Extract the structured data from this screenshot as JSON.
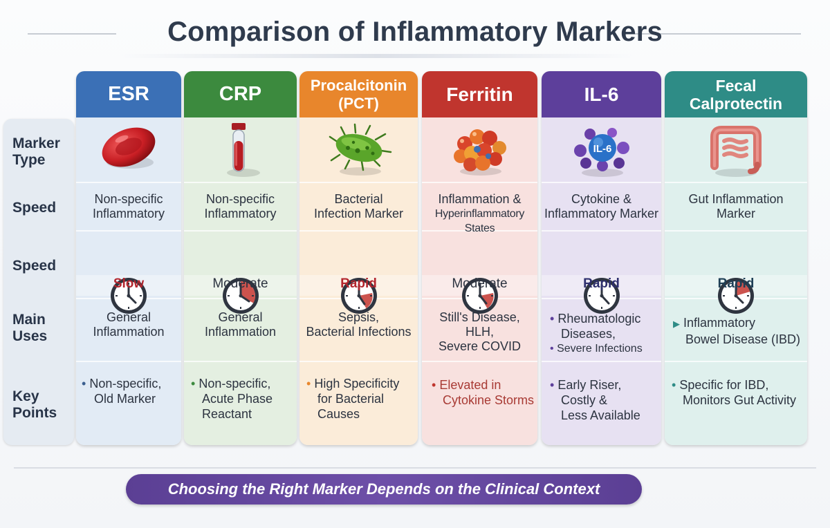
{
  "title": "Comparison of Inflammatory Markers",
  "row_labels": {
    "marker_type": "Marker\nType",
    "speed1": "Speed",
    "speed2": "Speed",
    "main_uses": "Main\nUses",
    "key_points": "Key\nPoints"
  },
  "columns": [
    {
      "header": "ESR",
      "icon": "red-blood-cell-icon",
      "category": [
        "Non-specific",
        "Inflammatory"
      ],
      "speed": "Slow",
      "uses": [
        "General",
        "Inflammation"
      ],
      "key_points": [
        [
          "Non-specific,",
          "Old Marker"
        ]
      ],
      "colors": {
        "header": "#3b70b6",
        "body": "#e2ebf5",
        "speed_text": "#b3262e",
        "bullet": "#3b5f8f"
      }
    },
    {
      "header": "CRP",
      "icon": "blood-test-tube-icon",
      "category": [
        "Non-specific",
        "Inflammatory"
      ],
      "speed": "Moderate",
      "uses": [
        "General",
        "Inflammation"
      ],
      "key_points": [
        [
          "Non-specific,",
          "Acute Phase",
          "Reactant"
        ]
      ],
      "colors": {
        "header": "#3c8a3e",
        "body": "#e4efe1",
        "speed_text": "#2c3340",
        "bullet": "#3c8a3e"
      }
    },
    {
      "header": "Procalcitonin\n(PCT)",
      "icon": "bacterium-icon",
      "category": [
        "Bacterial",
        "Infection Marker"
      ],
      "speed": "Rapid",
      "uses": [
        "Sepsis,",
        "Bacterial Infections"
      ],
      "key_points": [
        [
          "High Specificity",
          "for Bacterial",
          "Causes"
        ]
      ],
      "colors": {
        "header": "#e8862c",
        "body": "#fbecd9",
        "speed_text": "#b3262e",
        "bullet": "#e8862c"
      }
    },
    {
      "header": "Ferritin",
      "icon": "ferritin-molecule-icon",
      "category": [
        "Inflammation &",
        "Hyperinflammatory States"
      ],
      "speed": "Moderate",
      "uses": [
        "Still's Disease,",
        "HLH,",
        "Severe COVID"
      ],
      "key_points": [
        [
          "Elevated in",
          "Cytokine Storms"
        ]
      ],
      "colors": {
        "header": "#c0352e",
        "body": "#f8e1df",
        "speed_text": "#2c3340",
        "bullet": "#c0352e",
        "key_text": "#a83a34"
      }
    },
    {
      "header": "IL-6",
      "icon": "il6-cytokine-icon",
      "icon_label": "IL-6",
      "category": [
        "Cytokine &",
        "Inflammatory Marker"
      ],
      "speed": "Rapid",
      "uses": [
        [
          "Rheumatologic",
          "Diseases,"
        ],
        [
          "Severe Infections"
        ]
      ],
      "key_points": [
        [
          "Early Riser,",
          "Costly &",
          "Less Available"
        ]
      ],
      "colors": {
        "header": "#5d3f9b",
        "body": "#e7e1f2",
        "speed_text": "#2e2f6e",
        "bullet": "#5d3f9b"
      }
    },
    {
      "header": "Fecal\nCalprotectin",
      "icon": "intestine-icon",
      "category": [
        "Gut Inflammation",
        "Marker"
      ],
      "speed": "Rapid",
      "uses": [
        [
          "Inflammatory",
          "Bowel Disease (IBD)"
        ]
      ],
      "key_points": [
        [
          "Specific for IBD,",
          "Monitors Gut Activity"
        ]
      ],
      "colors": {
        "header": "#2e8c86",
        "body": "#dff0ed",
        "speed_text": "#1f3f56",
        "bullet": "#2e8c86"
      }
    }
  ],
  "footer": "Choosing the Right Marker Depends on the Clinical Context"
}
